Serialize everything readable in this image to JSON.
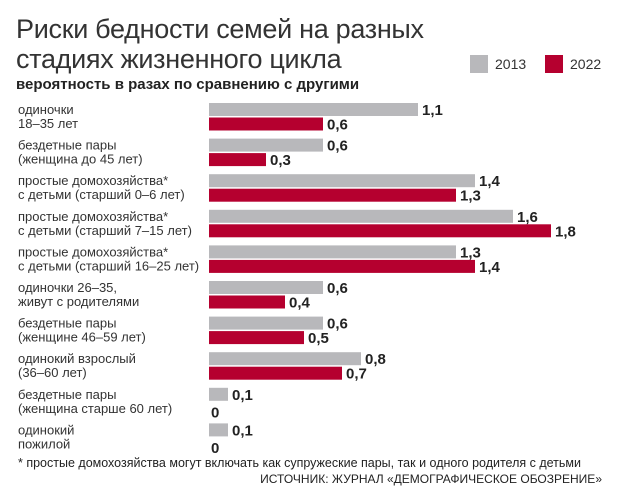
{
  "chart_data": {
    "type": "bar",
    "orientation": "horizontal",
    "title": "Риски бедности семей на разных стадиях жизненного цикла",
    "subtitle": "вероятность в разах по сравнению с другими",
    "categories": [
      [
        "одиночки",
        "18–35 лет"
      ],
      [
        "бездетные пары",
        "(женщина до 45 лет)"
      ],
      [
        "простые домохозяйства*",
        "с детьми (старший 0–6 лет)"
      ],
      [
        "простые домохозяйства*",
        "с детьми (старший 7–15 лет)"
      ],
      [
        "простые домохозяйства*",
        "с детьми (старший 16–25 лет)"
      ],
      [
        "одиночки 26–35,",
        "живут с родителями"
      ],
      [
        "бездетные пары",
        "(женщине 46–59 лет)"
      ],
      [
        "одинокий взрослый",
        "(36–60 лет)"
      ],
      [
        "бездетные пары",
        "(женщина старше 60 лет)"
      ],
      [
        "одинокий",
        "пожилой"
      ]
    ],
    "series": [
      {
        "name": "2013",
        "color": "#b8b8bb",
        "values": [
          1.1,
          0.6,
          1.4,
          1.6,
          1.3,
          0.6,
          0.6,
          0.8,
          0.1,
          0.1
        ],
        "labels": [
          "1,1",
          "0,6",
          "1,4",
          "1,6",
          "1,3",
          "0,6",
          "0,6",
          "0,8",
          "0,1",
          "0,1"
        ]
      },
      {
        "name": "2022",
        "color": "#b5002f",
        "values": [
          0.6,
          0.3,
          1.3,
          1.8,
          1.4,
          0.4,
          0.5,
          0.7,
          0,
          0
        ],
        "labels": [
          "0,6",
          "0,3",
          "1,3",
          "1,8",
          "1,4",
          "0,4",
          "0,5",
          "0,7",
          "0",
          "0"
        ]
      }
    ],
    "xlim": [
      0,
      1.8
    ],
    "grid": false,
    "legend": "top-right"
  },
  "footnote": "* простые домохозяйства могут включать как супружеские пары, так и одного родителя с детьми",
  "source": "ИСТОЧНИК: ЖУРНАЛ «ДЕМОГРАФИЧЕСКОЕ ОБОЗРЕНИЕ»"
}
